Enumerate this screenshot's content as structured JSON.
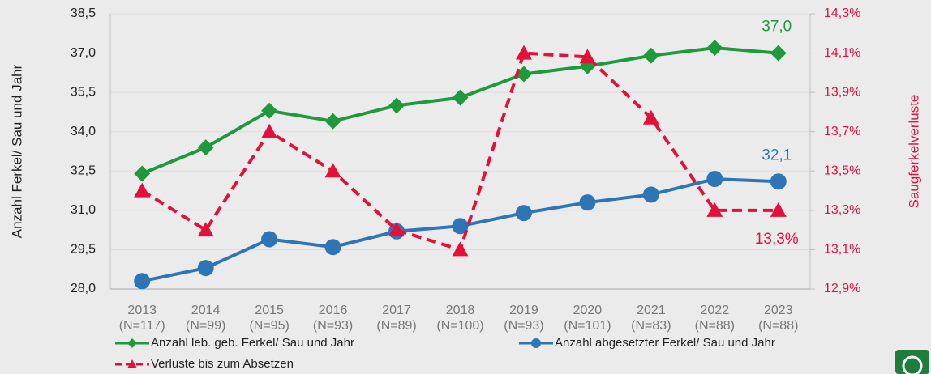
{
  "chart_data": {
    "type": "line",
    "y_axis_label": "Anzahl Ferkel/ Sau und Jahr",
    "y2_axis_label": "Saugferkelverluste",
    "categories": [
      "2013",
      "2014",
      "2015",
      "2016",
      "2017",
      "2018",
      "2019",
      "2020",
      "2021",
      "2022",
      "2023"
    ],
    "sample_sizes": [
      "(N=117)",
      "(N=99)",
      "(N=95)",
      "(N=93)",
      "(N=89)",
      "(N=100)",
      "(N=93)",
      "(N=101)",
      "(N=83)",
      "(N=88)",
      "(N=88)"
    ],
    "ylim": [
      28.0,
      38.5
    ],
    "yticks": [
      {
        "value": 28.0,
        "label": "28,0"
      },
      {
        "value": 29.5,
        "label": "29,5"
      },
      {
        "value": 31.0,
        "label": "31,0"
      },
      {
        "value": 32.5,
        "label": "32,5"
      },
      {
        "value": 34.0,
        "label": "34,0"
      },
      {
        "value": 35.5,
        "label": "35,5"
      },
      {
        "value": 37.0,
        "label": "37,0"
      },
      {
        "value": 38.5,
        "label": "38,5"
      }
    ],
    "y2lim": [
      12.9,
      14.3
    ],
    "y2ticks": [
      {
        "value": 12.9,
        "label": "12,9%"
      },
      {
        "value": 13.1,
        "label": "13,1%"
      },
      {
        "value": 13.3,
        "label": "13,3%"
      },
      {
        "value": 13.5,
        "label": "13,5%"
      },
      {
        "value": 13.7,
        "label": "13,7%"
      },
      {
        "value": 13.9,
        "label": "13,9%"
      },
      {
        "value": 14.1,
        "label": "14,1%"
      },
      {
        "value": 14.3,
        "label": "14,3%"
      }
    ],
    "grid": true,
    "series": [
      {
        "name": "Anzahl leb. geb. Ferkel/ Sau und Jahr",
        "color": "#1e9a3c",
        "marker": "diamond",
        "dash": false,
        "values": [
          32.4,
          33.4,
          34.8,
          34.4,
          35.0,
          35.3,
          36.2,
          36.5,
          36.9,
          37.2,
          37.0
        ],
        "value_labels": [
          null,
          null,
          null,
          null,
          null,
          null,
          null,
          null,
          null,
          null,
          "37,0"
        ]
      },
      {
        "name": "Anzahl abgesetzter Ferkel/ Sau und Jahr",
        "color": "#2e75b6",
        "marker": "circle",
        "dash": false,
        "values": [
          28.3,
          28.8,
          29.9,
          29.6,
          30.2,
          30.4,
          30.9,
          31.3,
          31.6,
          32.2,
          32.1
        ],
        "value_labels": [
          null,
          null,
          null,
          null,
          null,
          null,
          null,
          null,
          null,
          null,
          "32,1"
        ]
      },
      {
        "name": "Verluste bis zum Absetzen",
        "color": "#e4103c",
        "marker": "triangle",
        "dash": true,
        "axis": "y2",
        "values": [
          13.4,
          13.2,
          13.7,
          13.5,
          13.2,
          13.1,
          14.1,
          14.08,
          13.77,
          13.3,
          13.3
        ],
        "value_labels": [
          null,
          null,
          null,
          null,
          null,
          null,
          null,
          null,
          null,
          null,
          "13,3%"
        ]
      }
    ]
  }
}
